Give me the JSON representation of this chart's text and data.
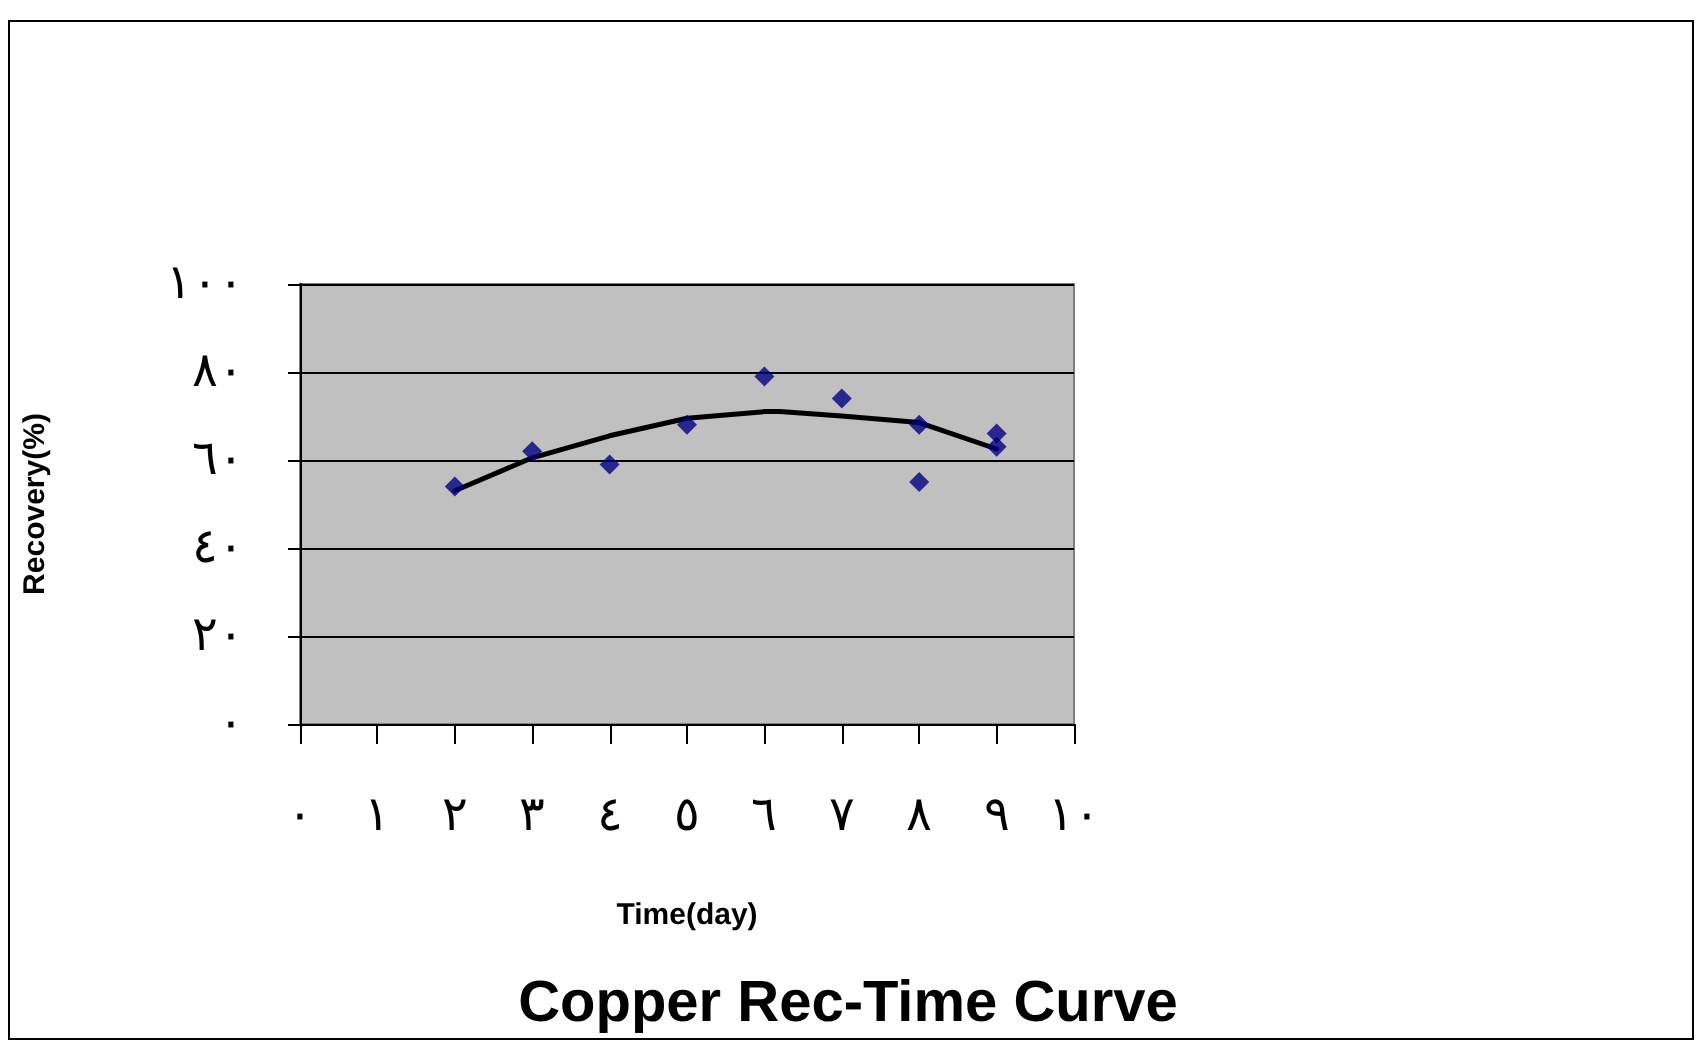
{
  "chart_data": {
    "type": "scatter",
    "title": "Copper Rec-Time Curve",
    "xlabel": "Time(day)",
    "ylabel": "Recovery(%)",
    "series": [
      {
        "color": "#000080",
        "marker": "diamond",
        "x": [
          2,
          3,
          4,
          5,
          6,
          7,
          8,
          8,
          9,
          9
        ],
        "values": [
          54,
          62,
          59,
          68,
          79,
          74,
          68,
          55,
          66,
          63
        ]
      },
      {
        "type": "line",
        "marker": "none",
        "color": "#000000",
        "x": [
          2,
          3,
          4,
          5,
          6,
          6.2,
          7,
          8,
          9
        ],
        "values": [
          53,
          60.5,
          65.5,
          69.5,
          71,
          71,
          70,
          68.5,
          62.5
        ]
      }
    ],
    "xlim": [
      0,
      10
    ],
    "xticks": [
      {
        "value": 0,
        "label": "٠"
      },
      {
        "value": 1,
        "label": "١"
      },
      {
        "value": 2,
        "label": "٢"
      },
      {
        "value": 3,
        "label": "٣"
      },
      {
        "value": 4,
        "label": "٤"
      },
      {
        "value": 5,
        "label": "٥"
      },
      {
        "value": 6,
        "label": "٦"
      },
      {
        "value": 7,
        "label": "٧"
      },
      {
        "value": 8,
        "label": "٨"
      },
      {
        "value": 9,
        "label": "٩"
      },
      {
        "value": 10,
        "label": "١٠"
      }
    ],
    "ylim": [
      0,
      100
    ],
    "yticks": [
      {
        "value": 0,
        "label": "٠"
      },
      {
        "value": 20,
        "label": "٢٠"
      },
      {
        "value": 40,
        "label": "٤٠"
      },
      {
        "value": 60,
        "label": "٦٠"
      },
      {
        "value": 80,
        "label": "٨٠"
      },
      {
        "value": 100,
        "label": "١٠٠"
      }
    ],
    "grid": "y"
  }
}
